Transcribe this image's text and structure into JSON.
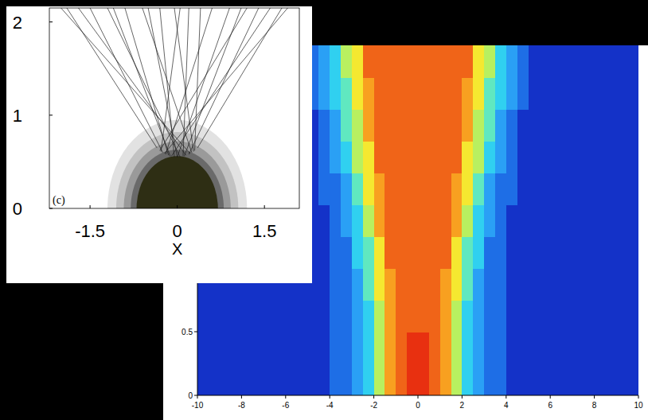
{
  "chart_data": [
    {
      "type": "heatmap",
      "xlim": [
        -10,
        10
      ],
      "ylim": [
        0,
        2.75
      ],
      "xticks": [
        -10,
        -8,
        -6,
        -4,
        -2,
        0,
        2,
        4,
        6,
        8,
        10
      ],
      "yticks": [
        0,
        0.5
      ],
      "zlim": [
        0,
        10
      ],
      "cells": [
        [
          1,
          1,
          1,
          1,
          1,
          1,
          1,
          1,
          1,
          1,
          1,
          1,
          2,
          2,
          3,
          4,
          6,
          8,
          9,
          10,
          10,
          9,
          8,
          6,
          4,
          3,
          2,
          2,
          1,
          1,
          1,
          1,
          1,
          1,
          1,
          1,
          1,
          1,
          1,
          1
        ],
        [
          1,
          1,
          1,
          1,
          1,
          1,
          1,
          1,
          1,
          1,
          1,
          1,
          2,
          2,
          3,
          4,
          6,
          8,
          9,
          10,
          10,
          9,
          8,
          6,
          4,
          3,
          2,
          2,
          1,
          1,
          1,
          1,
          1,
          1,
          1,
          1,
          1,
          1,
          1,
          1
        ],
        [
          1,
          1,
          1,
          1,
          1,
          1,
          1,
          1,
          1,
          1,
          1,
          1,
          2,
          2,
          3,
          4,
          6,
          8,
          9,
          9,
          9,
          9,
          8,
          6,
          4,
          3,
          2,
          2,
          1,
          1,
          1,
          1,
          1,
          1,
          1,
          1,
          1,
          1,
          1,
          1
        ],
        [
          1,
          1,
          1,
          1,
          1,
          1,
          1,
          1,
          1,
          1,
          1,
          1,
          2,
          2,
          3,
          5,
          7,
          8,
          9,
          9,
          9,
          9,
          8,
          7,
          5,
          3,
          2,
          2,
          1,
          1,
          1,
          1,
          1,
          1,
          1,
          1,
          1,
          1,
          1,
          1
        ],
        [
          1,
          1,
          1,
          1,
          1,
          1,
          1,
          1,
          1,
          1,
          1,
          1,
          2,
          2,
          4,
          5,
          7,
          9,
          9,
          9,
          9,
          9,
          9,
          7,
          5,
          4,
          2,
          2,
          1,
          1,
          1,
          1,
          1,
          1,
          1,
          1,
          1,
          1,
          1,
          1
        ],
        [
          1,
          1,
          1,
          1,
          1,
          1,
          1,
          1,
          1,
          1,
          1,
          1,
          2,
          3,
          4,
          6,
          8,
          9,
          9,
          9,
          9,
          9,
          9,
          8,
          6,
          4,
          3,
          2,
          1,
          1,
          1,
          1,
          1,
          1,
          1,
          1,
          1,
          1,
          1,
          1
        ],
        [
          1,
          1,
          1,
          1,
          1,
          1,
          1,
          1,
          1,
          1,
          1,
          2,
          2,
          3,
          5,
          7,
          8,
          9,
          9,
          9,
          9,
          9,
          9,
          8,
          7,
          5,
          3,
          2,
          2,
          1,
          1,
          1,
          1,
          1,
          1,
          1,
          1,
          1,
          1,
          1
        ],
        [
          1,
          1,
          1,
          1,
          1,
          1,
          1,
          1,
          1,
          1,
          1,
          2,
          3,
          4,
          6,
          7,
          9,
          9,
          9,
          9,
          9,
          9,
          9,
          9,
          7,
          6,
          4,
          3,
          2,
          1,
          1,
          1,
          1,
          1,
          1,
          1,
          1,
          1,
          1,
          1
        ],
        [
          1,
          1,
          1,
          1,
          1,
          1,
          1,
          1,
          1,
          1,
          1,
          2,
          3,
          5,
          6,
          8,
          9,
          9,
          9,
          9,
          9,
          9,
          9,
          9,
          8,
          6,
          5,
          3,
          2,
          1,
          1,
          1,
          1,
          1,
          1,
          1,
          1,
          1,
          1,
          1
        ],
        [
          1,
          1,
          1,
          1,
          1,
          1,
          1,
          1,
          1,
          1,
          2,
          3,
          4,
          5,
          7,
          8,
          9,
          9,
          9,
          9,
          9,
          9,
          9,
          9,
          8,
          7,
          5,
          4,
          3,
          2,
          1,
          1,
          1,
          1,
          1,
          1,
          1,
          1,
          1,
          1
        ],
        [
          1,
          1,
          1,
          1,
          1,
          1,
          1,
          1,
          1,
          1,
          2,
          3,
          4,
          6,
          7,
          9,
          9,
          9,
          9,
          9,
          9,
          9,
          9,
          9,
          9,
          7,
          6,
          4,
          3,
          2,
          1,
          1,
          1,
          1,
          1,
          1,
          1,
          1,
          1,
          1
        ]
      ]
    },
    {
      "type": "rays",
      "annotations": [
        "(c)"
      ],
      "xlabel": "X",
      "xlim": [
        -2.2,
        2.1
      ],
      "ylim": [
        0,
        2.15
      ],
      "xticks": [
        -1.5,
        0,
        1.5
      ],
      "yticks": [
        0,
        1,
        2
      ],
      "contours": [
        {
          "rx": 1.2,
          "ry": 0.95
        },
        {
          "rx": 1.05,
          "ry": 0.82
        },
        {
          "rx": 0.92,
          "ry": 0.72
        },
        {
          "rx": 0.8,
          "ry": 0.63
        },
        {
          "rx": 0.7,
          "ry": 0.56
        }
      ],
      "rays": [
        {
          "x": [
            -0.3,
            1.2
          ],
          "y": [
            0.62,
            2.15
          ]
        },
        {
          "x": [
            -0.25,
            -1.5
          ],
          "y": [
            0.6,
            2.15
          ]
        },
        {
          "x": [
            -0.2,
            0.6
          ],
          "y": [
            0.58,
            2.15
          ]
        },
        {
          "x": [
            -0.15,
            -0.9
          ],
          "y": [
            0.57,
            2.15
          ]
        },
        {
          "x": [
            -0.1,
            1.6
          ],
          "y": [
            0.56,
            2.15
          ]
        },
        {
          "x": [
            -0.05,
            -0.3
          ],
          "y": [
            0.55,
            2.15
          ]
        },
        {
          "x": [
            0,
            0.9
          ],
          "y": [
            0.55,
            2.15
          ]
        },
        {
          "x": [
            0.05,
            -1.2
          ],
          "y": [
            0.55,
            2.15
          ]
        },
        {
          "x": [
            0.1,
            0.2
          ],
          "y": [
            0.56,
            2.15
          ]
        },
        {
          "x": [
            0.15,
            -1.7
          ],
          "y": [
            0.57,
            2.15
          ]
        },
        {
          "x": [
            0.2,
            1.4
          ],
          "y": [
            0.58,
            2.15
          ]
        },
        {
          "x": [
            0.25,
            -0.6
          ],
          "y": [
            0.6,
            2.15
          ]
        },
        {
          "x": [
            0.3,
            0.4
          ],
          "y": [
            0.62,
            2.15
          ]
        },
        {
          "x": [
            -0.35,
            -1.9
          ],
          "y": [
            0.65,
            2.15
          ]
        },
        {
          "x": [
            0.35,
            1.8
          ],
          "y": [
            0.65,
            2.15
          ]
        },
        {
          "x": [
            -0.28,
            0.05
          ],
          "y": [
            0.61,
            2.15
          ]
        },
        {
          "x": [
            0.28,
            -0.05
          ],
          "y": [
            0.61,
            2.15
          ]
        },
        {
          "x": [
            -0.12,
            -1.1
          ],
          "y": [
            0.56,
            2.15
          ]
        },
        {
          "x": [
            0.12,
            1.1
          ],
          "y": [
            0.56,
            2.15
          ]
        },
        {
          "x": [
            -0.22,
            1.9
          ],
          "y": [
            0.59,
            2.15
          ]
        },
        {
          "x": [
            0.22,
            -2.0
          ],
          "y": [
            0.59,
            2.15
          ]
        },
        {
          "x": [
            0,
            -0.5
          ],
          "y": [
            0.55,
            2.15
          ]
        }
      ]
    }
  ]
}
